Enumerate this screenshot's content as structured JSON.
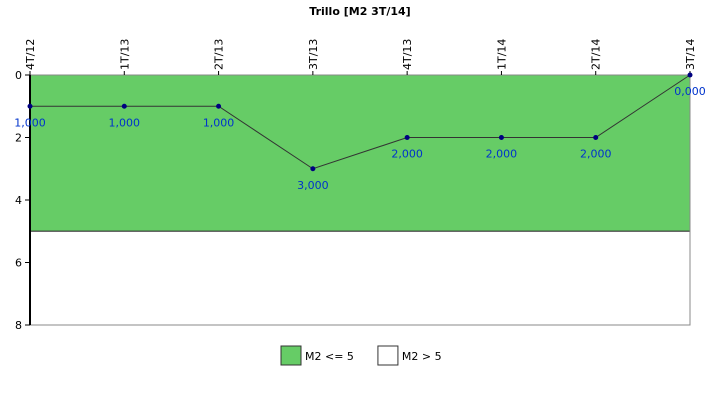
{
  "chart_data": {
    "type": "line",
    "title": "Trillo [M2 3T/14]",
    "categories": [
      "4T/12",
      "1T/13",
      "2T/13",
      "3T/13",
      "4T/13",
      "1T/14",
      "2T/14",
      "3T/14"
    ],
    "values": [
      1,
      1,
      1,
      3,
      2,
      2,
      2,
      0
    ],
    "value_labels": [
      "1,000",
      "1,000",
      "1,000",
      "3,000",
      "2,000",
      "2,000",
      "2,000",
      "0,000"
    ],
    "color": "#333333",
    "marker_color": "#000080",
    "label_color": "#0033cc",
    "ylim": [
      0,
      8
    ],
    "yticks": [
      0,
      2,
      4,
      6,
      8
    ],
    "invert_y": true,
    "bands": [
      {
        "name": "M2 <= 5",
        "color": "#66cc66",
        "from": 0,
        "to": 5
      },
      {
        "name": "M2 > 5",
        "color": "#ffffff",
        "from": 5,
        "to": 8
      }
    ]
  }
}
